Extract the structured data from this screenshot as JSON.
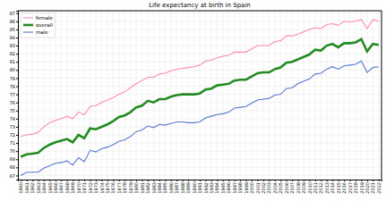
{
  "chart_data": {
    "type": "line",
    "title": "Life expectancy at birth in Spain",
    "x": [
      1960,
      1961,
      1962,
      1963,
      1964,
      1965,
      1966,
      1967,
      1968,
      1969,
      1970,
      1971,
      1972,
      1973,
      1974,
      1975,
      1976,
      1977,
      1978,
      1979,
      1980,
      1981,
      1982,
      1983,
      1984,
      1985,
      1986,
      1987,
      1988,
      1989,
      1990,
      1991,
      1992,
      1993,
      1994,
      1995,
      1996,
      1997,
      1998,
      1999,
      2000,
      2001,
      2002,
      2003,
      2004,
      2005,
      2006,
      2007,
      2008,
      2009,
      2010,
      2011,
      2012,
      2013,
      2014,
      2015,
      2016,
      2017,
      2018,
      2019,
      2020,
      2021,
      2022
    ],
    "series": [
      {
        "name": "female",
        "color": "#ff88bb",
        "values": [
          71.8,
          72.0,
          72.1,
          72.3,
          73.0,
          73.5,
          73.8,
          74.0,
          74.3,
          74.0,
          74.8,
          74.5,
          75.5,
          75.6,
          76.0,
          76.3,
          76.6,
          77.0,
          77.3,
          77.8,
          78.3,
          78.7,
          79.1,
          79.1,
          79.5,
          79.6,
          79.9,
          80.1,
          80.2,
          80.3,
          80.4,
          80.6,
          81.1,
          81.2,
          81.5,
          81.7,
          81.8,
          82.2,
          82.2,
          82.2,
          82.6,
          83.0,
          83.0,
          83.0,
          83.5,
          83.6,
          84.2,
          84.2,
          84.4,
          84.7,
          85.0,
          85.2,
          85.1,
          85.6,
          85.7,
          85.5,
          86.0,
          85.9,
          86.0,
          86.2,
          85.1,
          86.2,
          86.0
        ]
      },
      {
        "name": "overall",
        "color": "#228b22",
        "values": [
          69.3,
          69.6,
          69.7,
          69.8,
          70.4,
          70.8,
          71.1,
          71.3,
          71.5,
          71.1,
          72.0,
          71.6,
          72.8,
          72.7,
          73.0,
          73.3,
          73.7,
          74.2,
          74.4,
          74.8,
          75.4,
          75.6,
          76.2,
          76.0,
          76.4,
          76.4,
          76.7,
          76.9,
          77.0,
          77.0,
          77.0,
          77.1,
          77.6,
          77.7,
          78.1,
          78.2,
          78.3,
          78.7,
          78.8,
          78.8,
          79.2,
          79.6,
          79.7,
          79.7,
          80.1,
          80.3,
          80.9,
          81.0,
          81.3,
          81.6,
          81.9,
          82.5,
          82.4,
          83.0,
          83.2,
          82.8,
          83.3,
          83.3,
          83.4,
          83.8,
          82.3,
          83.2,
          83.1
        ]
      },
      {
        "name": "male",
        "color": "#5577cc",
        "values": [
          67.0,
          67.4,
          67.4,
          67.4,
          67.9,
          68.2,
          68.5,
          68.6,
          68.8,
          68.3,
          69.2,
          68.7,
          70.1,
          69.9,
          70.3,
          70.5,
          70.8,
          71.2,
          71.4,
          71.8,
          72.4,
          72.6,
          73.1,
          72.9,
          73.3,
          73.2,
          73.4,
          73.6,
          73.6,
          73.5,
          73.5,
          73.6,
          74.1,
          74.3,
          74.5,
          74.6,
          74.8,
          75.3,
          75.4,
          75.5,
          75.9,
          76.3,
          76.4,
          76.5,
          76.9,
          77.0,
          77.7,
          77.8,
          78.3,
          78.6,
          78.9,
          79.5,
          79.6,
          80.1,
          80.4,
          80.1,
          80.5,
          80.6,
          80.7,
          81.1,
          79.7,
          80.3,
          80.4
        ]
      }
    ],
    "xlim": [
      1959.5,
      2022.5
    ],
    "xticks": [
      1960,
      1961,
      1962,
      1963,
      1964,
      1965,
      1966,
      1967,
      1968,
      1969,
      1970,
      1971,
      1972,
      1973,
      1974,
      1975,
      1976,
      1977,
      1978,
      1979,
      1980,
      1981,
      1982,
      1983,
      1984,
      1985,
      1986,
      1987,
      1988,
      1989,
      1990,
      1991,
      1992,
      1993,
      1994,
      1995,
      1996,
      1997,
      1998,
      1999,
      2000,
      2001,
      2002,
      2003,
      2004,
      2005,
      2006,
      2007,
      2008,
      2009,
      2010,
      2011,
      2012,
      2013,
      2014,
      2015,
      2016,
      2017,
      2018,
      2019,
      2020,
      2021,
      2022
    ],
    "ylim": [
      66.5,
      87.3
    ],
    "yticks": [
      67,
      68,
      69,
      70,
      71,
      72,
      73,
      74,
      75,
      76,
      77,
      78,
      79,
      80,
      81,
      82,
      83,
      84,
      85,
      86,
      87
    ],
    "grid": true,
    "legend": "upper left"
  }
}
